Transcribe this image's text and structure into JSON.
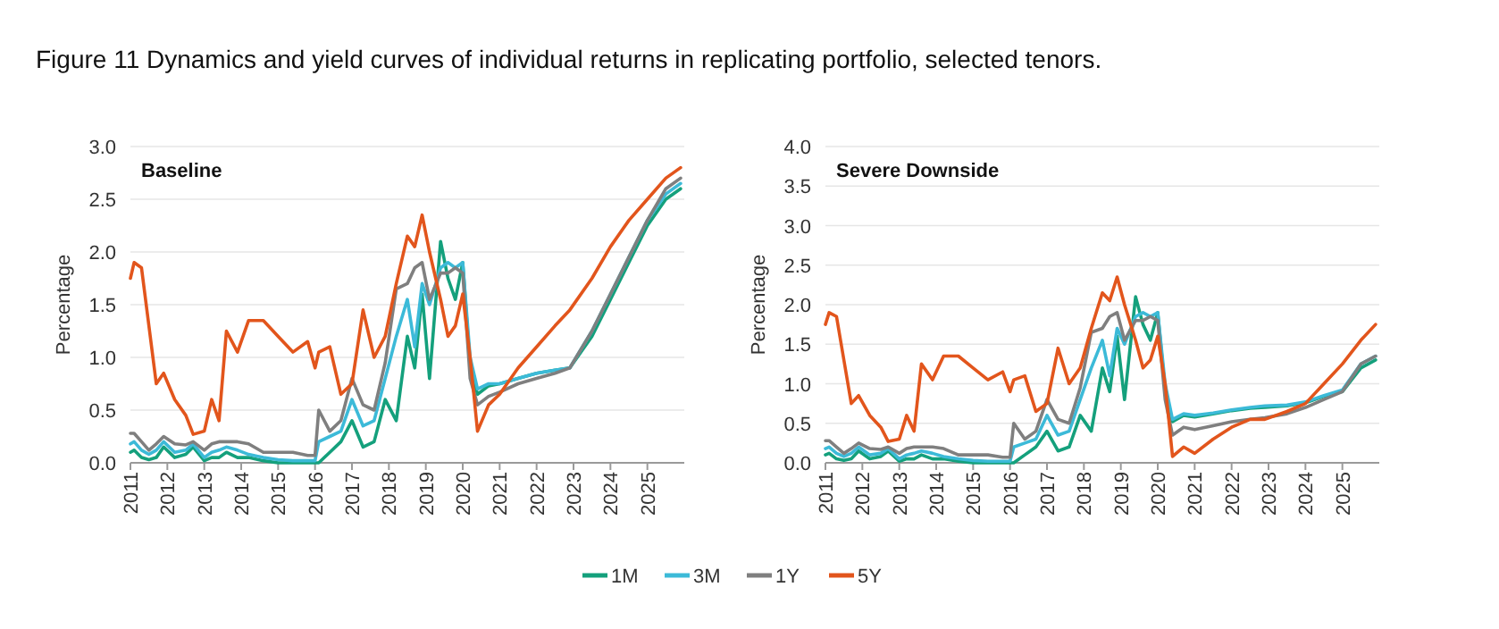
{
  "chart_data": [
    {
      "type": "line",
      "title": "Figure 11  Dynamics and yield curves of individual returns in replicating portfolio, selected tenors.",
      "subtitle": "Baseline",
      "ylabel": "Percentage",
      "x": [
        2011.0,
        2011.1,
        2011.3,
        2011.5,
        2011.7,
        2011.9,
        2012.2,
        2012.5,
        2012.7,
        2013.0,
        2013.2,
        2013.4,
        2013.6,
        2013.9,
        2014.2,
        2014.6,
        2015.0,
        2015.4,
        2015.8,
        2016.0,
        2016.1,
        2016.4,
        2016.7,
        2017.0,
        2017.3,
        2017.6,
        2017.9,
        2018.2,
        2018.5,
        2018.7,
        2018.9,
        2019.1,
        2019.4,
        2019.6,
        2019.8,
        2020.0,
        2020.2,
        2020.4,
        2020.7,
        2021.0,
        2021.5,
        2022.0,
        2022.5,
        2022.9,
        2023.5,
        2024.0,
        2024.5,
        2025.0,
        2025.5,
        2025.9
      ],
      "xlim": [
        2011,
        2026
      ],
      "xticks": [
        2011,
        2012,
        2013,
        2014,
        2015,
        2016,
        2017,
        2018,
        2019,
        2020,
        2021,
        2022,
        2023,
        2024,
        2025
      ],
      "ylim": [
        0,
        3
      ],
      "yticks": [
        {
          "value": 0,
          "label": "0.0"
        },
        {
          "value": 0.5,
          "label": "0.5"
        },
        {
          "value": 1,
          "label": "1.0"
        },
        {
          "value": 1.5,
          "label": "1.5"
        },
        {
          "value": 2,
          "label": "2.0"
        },
        {
          "value": 2.5,
          "label": "2.5"
        },
        {
          "value": 3,
          "label": "3.0"
        }
      ],
      "grid": "y",
      "legend": "bottom",
      "series": [
        {
          "name": "1M",
          "color": "#14a07c",
          "values": [
            0.1,
            0.12,
            0.05,
            0.03,
            0.05,
            0.15,
            0.05,
            0.08,
            0.15,
            0.02,
            0.05,
            0.05,
            0.1,
            0.05,
            0.05,
            0.02,
            0.0,
            0.0,
            0.0,
            0.0,
            0.0,
            0.1,
            0.2,
            0.4,
            0.15,
            0.2,
            0.6,
            0.4,
            1.2,
            0.9,
            1.6,
            0.8,
            2.1,
            1.75,
            1.55,
            1.9,
            0.9,
            0.65,
            0.73,
            0.75,
            0.8,
            0.85,
            0.88,
            0.9,
            1.2,
            1.55,
            1.9,
            2.25,
            2.5,
            2.6
          ]
        },
        {
          "name": "3M",
          "color": "#3cbad8",
          "values": [
            0.18,
            0.2,
            0.12,
            0.08,
            0.12,
            0.2,
            0.1,
            0.12,
            0.18,
            0.05,
            0.1,
            0.12,
            0.15,
            0.12,
            0.08,
            0.05,
            0.03,
            0.02,
            0.02,
            0.02,
            0.2,
            0.25,
            0.3,
            0.6,
            0.35,
            0.4,
            0.8,
            1.2,
            1.55,
            1.1,
            1.7,
            1.5,
            1.85,
            1.9,
            1.85,
            1.9,
            1.0,
            0.7,
            0.75,
            0.75,
            0.8,
            0.85,
            0.88,
            0.9,
            1.25,
            1.6,
            1.95,
            2.3,
            2.55,
            2.65
          ]
        },
        {
          "name": "1Y",
          "color": "#7f7f7f",
          "values": [
            0.28,
            0.28,
            0.2,
            0.12,
            0.18,
            0.25,
            0.18,
            0.17,
            0.2,
            0.12,
            0.18,
            0.2,
            0.2,
            0.2,
            0.18,
            0.1,
            0.1,
            0.1,
            0.07,
            0.07,
            0.5,
            0.3,
            0.4,
            0.8,
            0.55,
            0.5,
            0.95,
            1.65,
            1.7,
            1.85,
            1.9,
            1.55,
            1.8,
            1.8,
            1.85,
            1.8,
            0.8,
            0.55,
            0.63,
            0.67,
            0.75,
            0.8,
            0.85,
            0.9,
            1.25,
            1.6,
            1.95,
            2.3,
            2.6,
            2.7
          ]
        },
        {
          "name": "5Y",
          "color": "#e2551c",
          "values": [
            1.75,
            1.9,
            1.85,
            1.3,
            0.75,
            0.85,
            0.6,
            0.45,
            0.27,
            0.3,
            0.6,
            0.4,
            1.25,
            1.05,
            1.35,
            1.35,
            1.2,
            1.05,
            1.15,
            0.9,
            1.05,
            1.1,
            0.65,
            0.75,
            1.45,
            1.0,
            1.2,
            1.7,
            2.15,
            2.05,
            2.35,
            2.0,
            1.55,
            1.2,
            1.3,
            1.6,
            1.0,
            0.3,
            0.55,
            0.65,
            0.9,
            1.1,
            1.3,
            1.45,
            1.75,
            2.05,
            2.3,
            2.5,
            2.7,
            2.8
          ]
        }
      ]
    },
    {
      "type": "line",
      "subtitle": "Severe Downside",
      "ylabel": "Percentage",
      "x": [
        2011.0,
        2011.1,
        2011.3,
        2011.5,
        2011.7,
        2011.9,
        2012.2,
        2012.5,
        2012.7,
        2013.0,
        2013.2,
        2013.4,
        2013.6,
        2013.9,
        2014.2,
        2014.6,
        2015.0,
        2015.4,
        2015.8,
        2016.0,
        2016.1,
        2016.4,
        2016.7,
        2017.0,
        2017.3,
        2017.6,
        2017.9,
        2018.2,
        2018.5,
        2018.7,
        2018.9,
        2019.1,
        2019.4,
        2019.6,
        2019.8,
        2020.0,
        2020.2,
        2020.4,
        2020.7,
        2021.0,
        2021.5,
        2022.0,
        2022.5,
        2022.9,
        2023.5,
        2024.0,
        2024.5,
        2025.0,
        2025.5,
        2025.9
      ],
      "xlim": [
        2011,
        2026
      ],
      "xticks": [
        2011,
        2012,
        2013,
        2014,
        2015,
        2016,
        2017,
        2018,
        2019,
        2020,
        2021,
        2022,
        2023,
        2024,
        2025
      ],
      "ylim": [
        0,
        4
      ],
      "yticks": [
        {
          "value": 0,
          "label": "0.0"
        },
        {
          "value": 0.5,
          "label": "0.5"
        },
        {
          "value": 1,
          "label": "1.0"
        },
        {
          "value": 1.5,
          "label": "1.5"
        },
        {
          "value": 2,
          "label": "2.0"
        },
        {
          "value": 2.5,
          "label": "2.5"
        },
        {
          "value": 3,
          "label": "3.0"
        },
        {
          "value": 3.5,
          "label": "3.5"
        },
        {
          "value": 4,
          "label": "4.0"
        }
      ],
      "grid": "y",
      "series": [
        {
          "color": "#14a07c",
          "values": [
            0.1,
            0.12,
            0.05,
            0.03,
            0.05,
            0.15,
            0.05,
            0.08,
            0.15,
            0.02,
            0.05,
            0.05,
            0.1,
            0.05,
            0.05,
            0.02,
            0.0,
            0.0,
            0.0,
            0.0,
            0.0,
            0.1,
            0.2,
            0.4,
            0.15,
            0.2,
            0.6,
            0.4,
            1.2,
            0.9,
            1.6,
            0.8,
            2.1,
            1.75,
            1.55,
            1.9,
            0.9,
            0.52,
            0.6,
            0.58,
            0.62,
            0.66,
            0.69,
            0.7,
            0.72,
            0.76,
            0.84,
            0.9,
            1.2,
            1.3
          ]
        },
        {
          "color": "#3cbad8",
          "values": [
            0.18,
            0.2,
            0.12,
            0.08,
            0.12,
            0.2,
            0.1,
            0.12,
            0.18,
            0.05,
            0.1,
            0.12,
            0.15,
            0.12,
            0.08,
            0.05,
            0.03,
            0.02,
            0.02,
            0.02,
            0.2,
            0.25,
            0.3,
            0.6,
            0.35,
            0.4,
            0.8,
            1.2,
            1.55,
            1.1,
            1.7,
            1.5,
            1.85,
            1.9,
            1.85,
            1.9,
            1.0,
            0.55,
            0.62,
            0.6,
            0.63,
            0.67,
            0.7,
            0.72,
            0.73,
            0.77,
            0.85,
            0.92,
            1.25,
            1.35
          ]
        },
        {
          "color": "#7f7f7f",
          "values": [
            0.28,
            0.28,
            0.2,
            0.12,
            0.18,
            0.25,
            0.18,
            0.17,
            0.2,
            0.12,
            0.18,
            0.2,
            0.2,
            0.2,
            0.18,
            0.1,
            0.1,
            0.1,
            0.07,
            0.07,
            0.5,
            0.3,
            0.4,
            0.8,
            0.55,
            0.5,
            0.95,
            1.65,
            1.7,
            1.85,
            1.9,
            1.55,
            1.8,
            1.8,
            1.85,
            1.8,
            0.8,
            0.35,
            0.45,
            0.42,
            0.47,
            0.52,
            0.55,
            0.57,
            0.62,
            0.7,
            0.8,
            0.9,
            1.25,
            1.35
          ]
        },
        {
          "color": "#e2551c",
          "values": [
            1.75,
            1.9,
            1.85,
            1.3,
            0.75,
            0.85,
            0.6,
            0.45,
            0.27,
            0.3,
            0.6,
            0.4,
            1.25,
            1.05,
            1.35,
            1.35,
            1.2,
            1.05,
            1.15,
            0.9,
            1.05,
            1.1,
            0.65,
            0.75,
            1.45,
            1.0,
            1.2,
            1.7,
            2.15,
            2.05,
            2.35,
            2.0,
            1.55,
            1.2,
            1.3,
            1.6,
            1.0,
            0.08,
            0.2,
            0.12,
            0.3,
            0.45,
            0.55,
            0.55,
            0.65,
            0.75,
            1.0,
            1.25,
            1.55,
            1.75
          ]
        }
      ]
    }
  ]
}
